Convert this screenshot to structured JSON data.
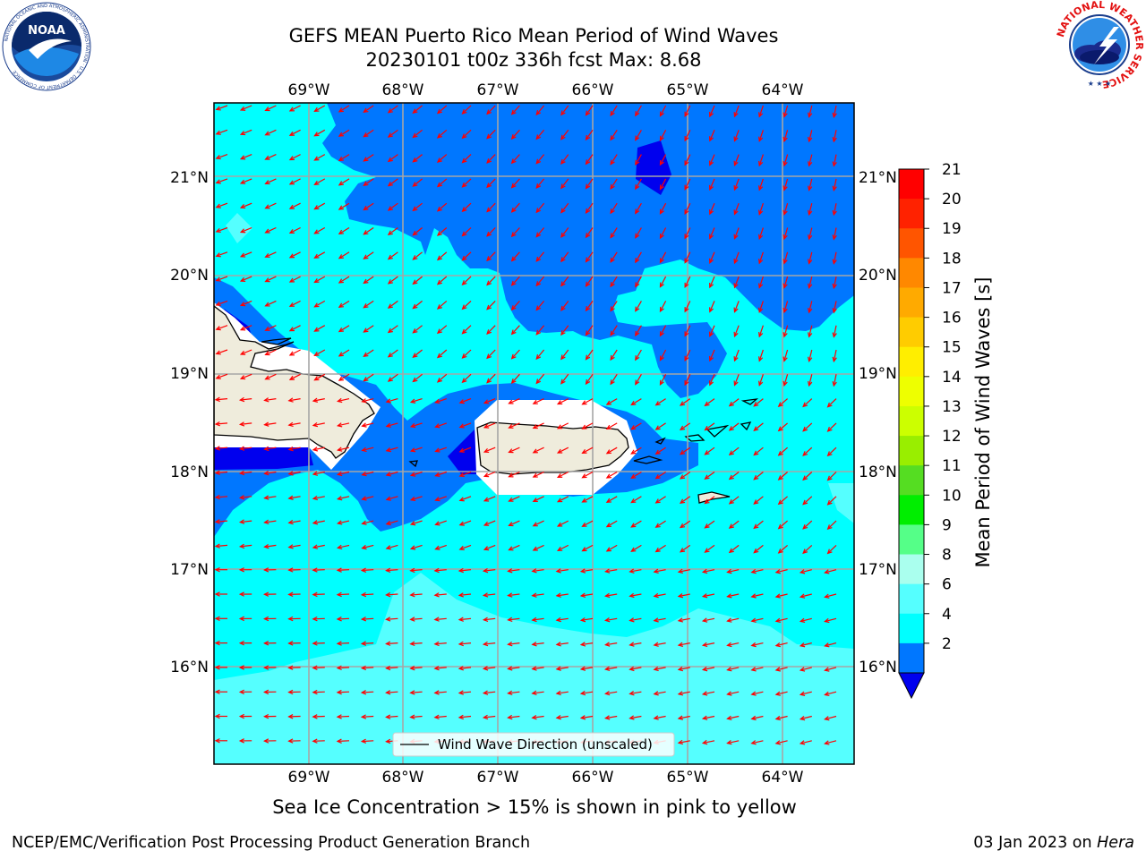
{
  "title": {
    "line1": "GEFS MEAN Puerto Rico Mean Period of Wind Waves",
    "line2": "20230101 t00z 336h fcst   Max: 8.68"
  },
  "logos": {
    "noaa": {
      "text": "NOAA",
      "ring_text": "NATIONAL OCEANIC AND ATMOSPHERIC ADMINISTRATION · U.S. DEPARTMENT OF COMMERCE"
    },
    "nws": {
      "ring_text": "NATIONAL WEATHER SERVICE"
    }
  },
  "map": {
    "lon_labels": [
      "69°W",
      "68°W",
      "67°W",
      "66°W",
      "65°W",
      "64°W"
    ],
    "lat_labels": [
      "21°N",
      "20°N",
      "19°N",
      "18°N",
      "17°N",
      "16°N"
    ],
    "land_color": "#efecdc",
    "arrow_color": "#ff0000"
  },
  "legend": {
    "label": "Wind Wave Direction (unscaled)"
  },
  "colorbar": {
    "label": "Mean Period of Wind Waves [s]",
    "ticks": [
      "21",
      "20",
      "19",
      "18",
      "17",
      "16",
      "15",
      "14",
      "13",
      "12",
      "11",
      "10",
      "9",
      "8",
      "6",
      "4",
      "2"
    ],
    "colors": [
      "#ff0000",
      "#ff2200",
      "#ff5500",
      "#ff8800",
      "#ffaa00",
      "#ffcc00",
      "#ffee00",
      "#eeff00",
      "#ccff00",
      "#99ee00",
      "#55dd22",
      "#00ee00",
      "#55ff88",
      "#aaffee",
      "#55ffff",
      "#00ffff",
      "#0077ff"
    ],
    "extend_color": "#0000ee"
  },
  "notes": {
    "sea_ice": "Sea Ice Concentration > 15% is shown in pink to yellow",
    "footer_left": "NCEP/EMC/Verification Post Processing Product Generation Branch",
    "footer_date": "03 Jan 2023 on ",
    "footer_host": "Hera"
  }
}
